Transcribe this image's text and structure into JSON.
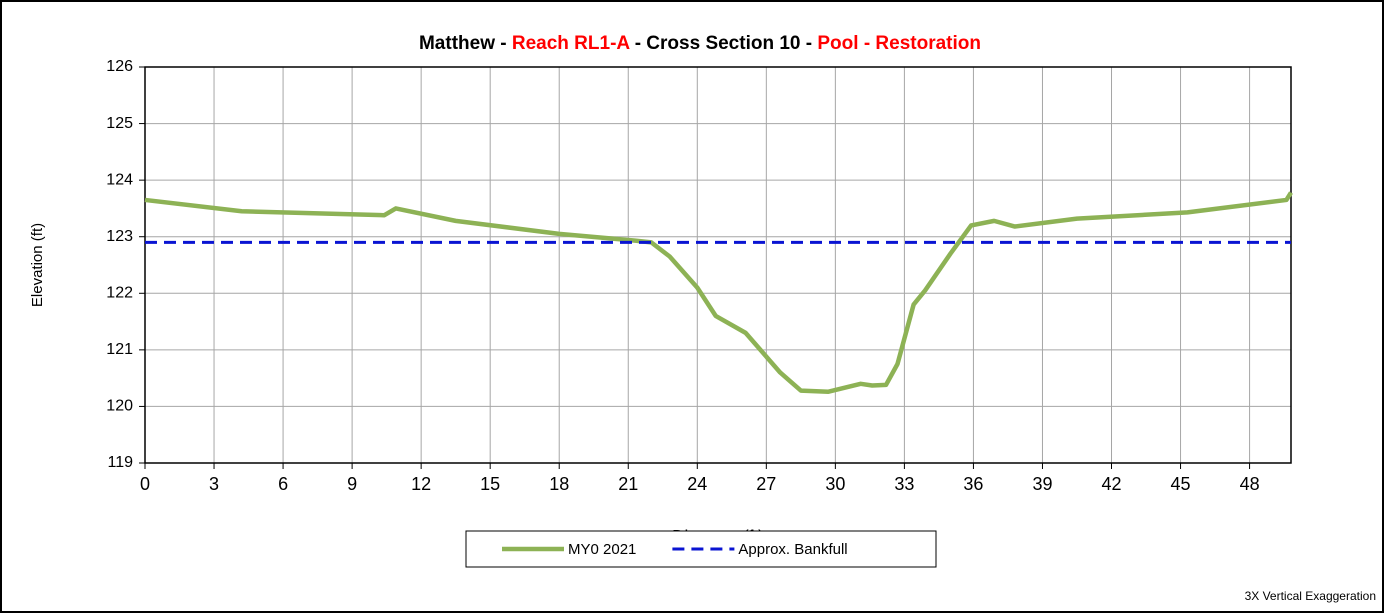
{
  "chart_data": {
    "type": "line",
    "title_parts": [
      {
        "text": "Matthew - ",
        "color": "#000000"
      },
      {
        "text": "Reach RL1-A",
        "color": "#ff0000"
      },
      {
        "text": " - Cross Section 10 - ",
        "color": "#000000"
      },
      {
        "text": "Pool - Restoration",
        "color": "#ff0000"
      }
    ],
    "x_label": "Distance (ft)",
    "y_label": "Elevation (ft)",
    "annotation": "3X Vertical Exaggeration",
    "xlim": [
      0,
      49.8
    ],
    "ylim": [
      119,
      126
    ],
    "xticks": [
      0,
      3,
      6,
      9,
      12,
      15,
      18,
      21,
      24,
      27,
      30,
      33,
      36,
      39,
      42,
      45,
      48
    ],
    "yticks": [
      119,
      120,
      121,
      122,
      123,
      124,
      125,
      126
    ],
    "grid": true,
    "legend": "bottom",
    "series": [
      {
        "name": "MY0 2021",
        "color": "#8db255",
        "dash": false,
        "x": [
          0,
          4.2,
          10.4,
          10.9,
          13.5,
          18,
          21.3,
          22,
          22.8,
          24,
          24.8,
          26.1,
          27.6,
          28.5,
          29.7,
          31.1,
          31.6,
          32.2,
          32.7,
          33.4,
          33.9,
          35,
          35.9,
          36.9,
          37.8,
          40.5,
          45.3,
          49.6,
          49.8
        ],
        "values": [
          123.65,
          123.45,
          123.38,
          123.5,
          123.28,
          123.05,
          122.93,
          122.9,
          122.65,
          122.1,
          121.6,
          121.3,
          120.6,
          120.28,
          120.26,
          120.4,
          120.37,
          120.38,
          120.75,
          121.8,
          122.05,
          122.7,
          123.2,
          123.28,
          123.18,
          123.32,
          123.43,
          123.65,
          123.78
        ]
      },
      {
        "name": "Approx. Bankfull",
        "color": "#0a14d2",
        "dash": true,
        "x": [
          0,
          49.8
        ],
        "values": [
          122.9,
          122.9
        ]
      }
    ]
  }
}
